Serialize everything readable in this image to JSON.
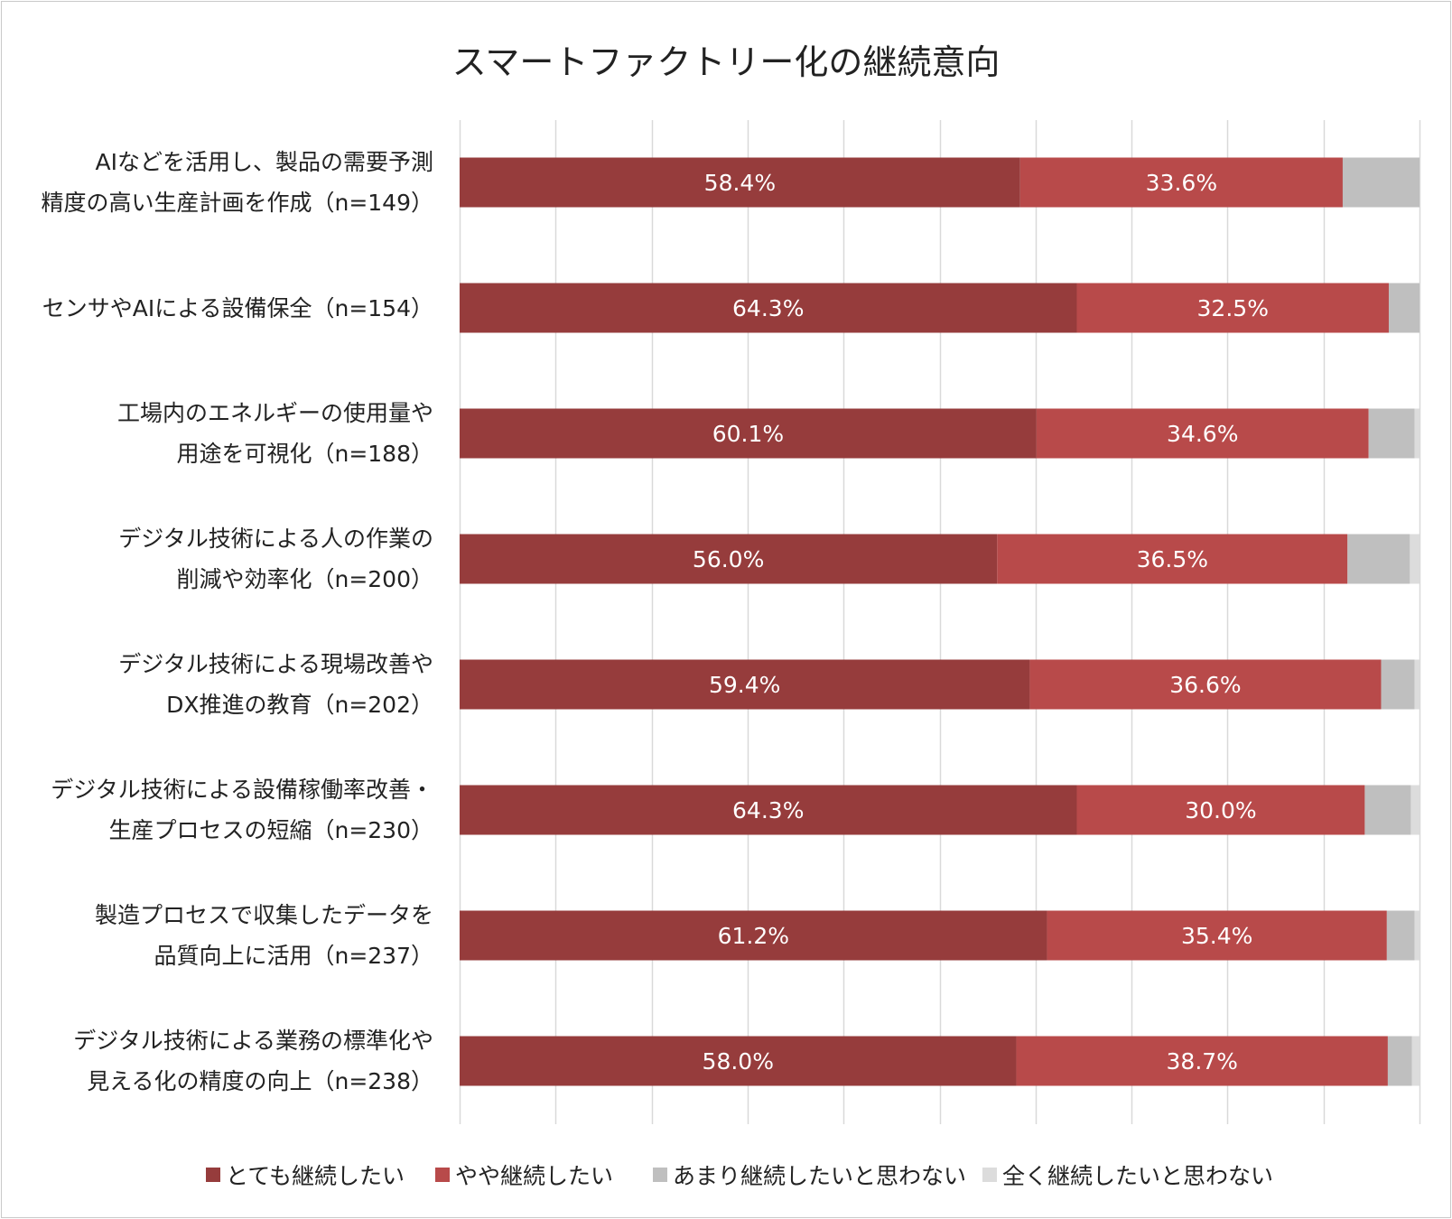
{
  "chart_data": {
    "type": "bar",
    "orientation": "horizontal",
    "stacked": true,
    "normalized_percent": true,
    "title": "スマートファクトリー化の継続意向",
    "categories": [
      [
        "AIなどを活用し、製品の需要予測",
        "精度の高い生産計画を作成（n=149）"
      ],
      [
        "センサやAIによる設備保全（n=154）"
      ],
      [
        "工場内のエネルギーの使用量や",
        "用途を可視化（n=188）"
      ],
      [
        "デジタル技術による人の作業の",
        "削減や効率化（n=200）"
      ],
      [
        "デジタル技術による現場改善や",
        "DX推進の教育（n=202）"
      ],
      [
        "デジタル技術による設備稼働率改善・",
        "生産プロセスの短縮（n=230）"
      ],
      [
        "製造プロセスで収集したデータを",
        "品質向上に活用（n=237）"
      ],
      [
        "デジタル技術による業務の標準化や",
        "見える化の精度の向上（n=238）"
      ]
    ],
    "series": [
      {
        "name": "とても継続したい",
        "color": "#963c3c",
        "values": [
          58.4,
          64.3,
          60.1,
          56.0,
          59.4,
          64.3,
          61.2,
          58.0
        ],
        "show_labels": true
      },
      {
        "name": "やや継続したい",
        "color": "#b84a4a",
        "values": [
          33.6,
          32.5,
          34.6,
          36.5,
          36.6,
          30.0,
          35.4,
          38.7
        ],
        "show_labels": true
      },
      {
        "name": "あまり継続したいと思わない",
        "color": "#bfbfbf",
        "values": [
          8.0,
          3.2,
          4.8,
          6.5,
          3.5,
          4.8,
          2.9,
          2.5
        ],
        "show_labels": false
      },
      {
        "name": "全く継続したいと思わない",
        "color": "#dcdcdc",
        "values": [
          0.0,
          0.0,
          0.5,
          1.0,
          0.5,
          0.9,
          0.5,
          0.8
        ],
        "show_labels": false
      }
    ],
    "xlim": [
      0,
      100
    ],
    "x_gridlines": [
      0,
      10,
      20,
      30,
      40,
      50,
      60,
      70,
      80,
      90,
      100
    ],
    "label_format": "{v}%",
    "legend_position": "bottom"
  }
}
